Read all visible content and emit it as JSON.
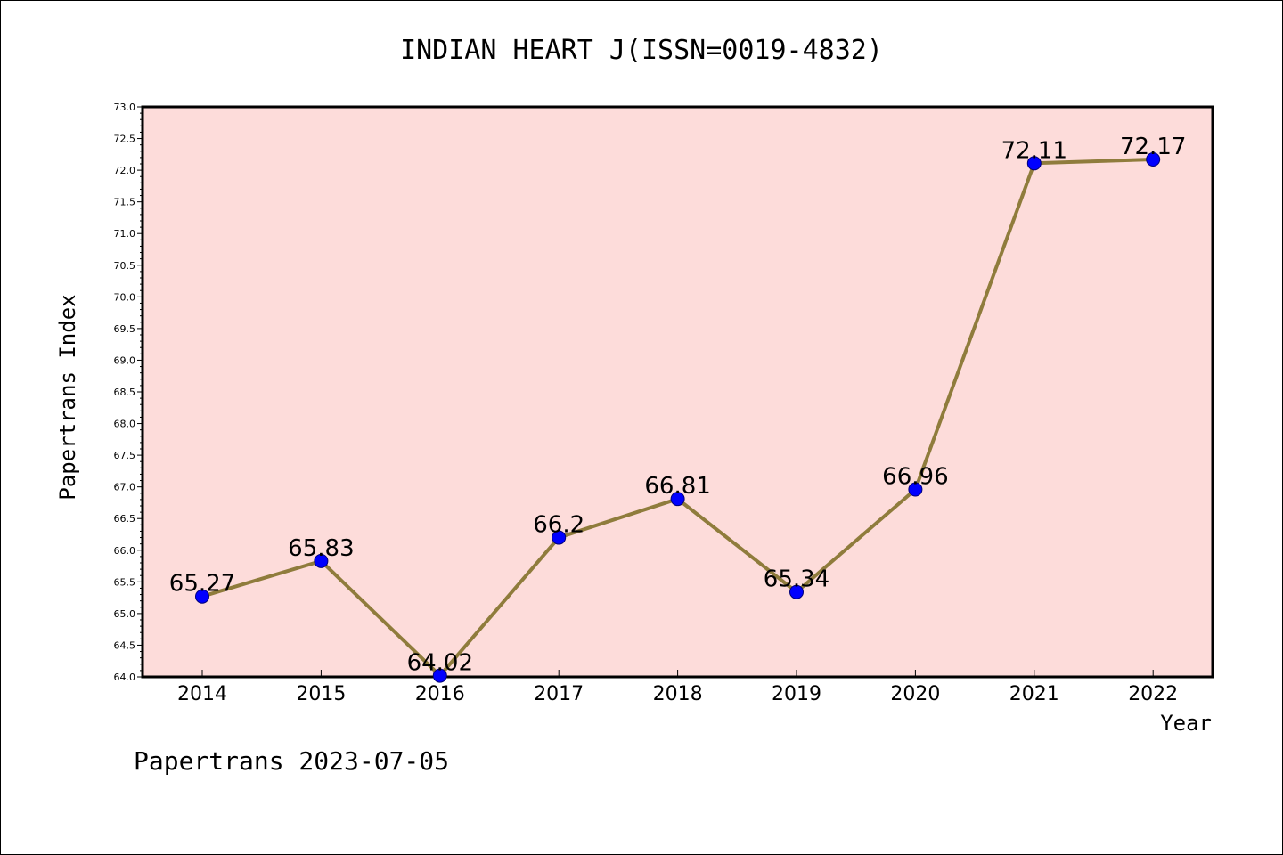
{
  "chart_data": {
    "type": "line",
    "title": "INDIAN HEART J(ISSN=0019-4832)",
    "xlabel": "Year",
    "ylabel": "Papertrans Index",
    "categories": [
      "2014",
      "2015",
      "2016",
      "2017",
      "2018",
      "2019",
      "2020",
      "2021",
      "2022"
    ],
    "values": [
      65.27,
      65.83,
      64.02,
      66.2,
      66.81,
      65.34,
      66.96,
      72.11,
      72.17
    ],
    "data_labels": [
      "65.27",
      "65.83",
      "64.02",
      "66.2",
      "66.81",
      "65.34",
      "66.96",
      "72.11",
      "72.17"
    ],
    "ylim": [
      64.0,
      73.0
    ],
    "yticks": [
      "64.0",
      "64.5",
      "65.0",
      "65.5",
      "66.0",
      "66.5",
      "67.0",
      "67.5",
      "68.0",
      "68.5",
      "69.0",
      "69.5",
      "70.0",
      "70.5",
      "71.0",
      "71.5",
      "72.0",
      "72.5",
      "73.0"
    ],
    "grid": false,
    "legend": "none",
    "colors": {
      "line": "#8f7c3c",
      "marker": "#0000ff",
      "plot_background": "#fddcda"
    }
  },
  "footer": "Papertrans 2023-07-05"
}
